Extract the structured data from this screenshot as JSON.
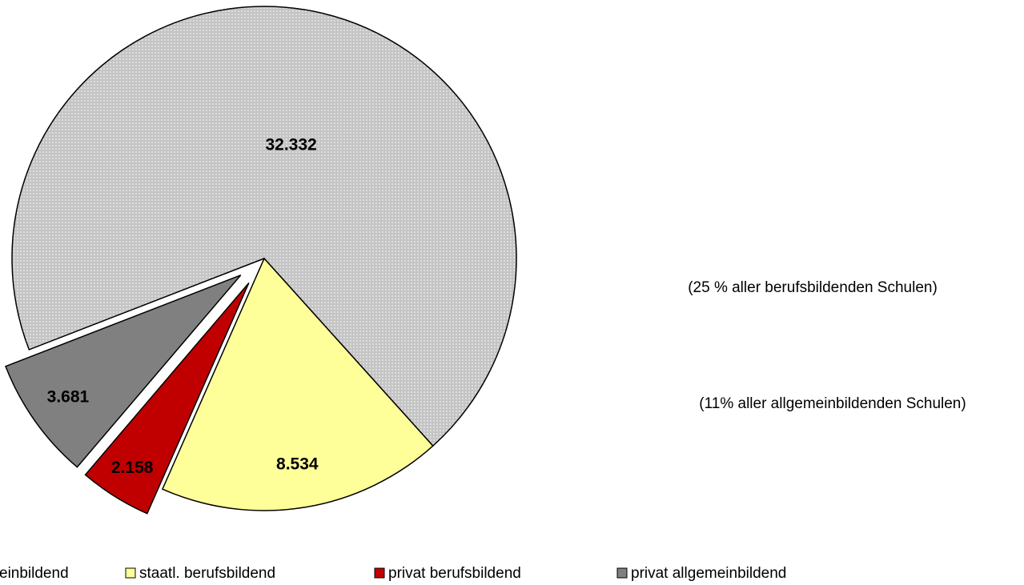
{
  "chart_data": {
    "type": "pie",
    "categories": [
      "einbildend",
      "staatl. berufsbildend",
      "privat berufsbildend",
      "privat allgemeinbildend"
    ],
    "values": [
      32332,
      8534,
      2158,
      3681
    ],
    "value_labels": [
      "32.332",
      "8.534",
      "2.158",
      "3.681"
    ],
    "colors": [
      "#c4c4c4",
      "#ffff99",
      "#c00000",
      "#808080"
    ],
    "explode": [
      false,
      false,
      true,
      true
    ],
    "annotations": [
      "(25 % aller berufsbildenden Schulen)",
      "(11% aller allgemeinbildenden Schulen)"
    ]
  }
}
